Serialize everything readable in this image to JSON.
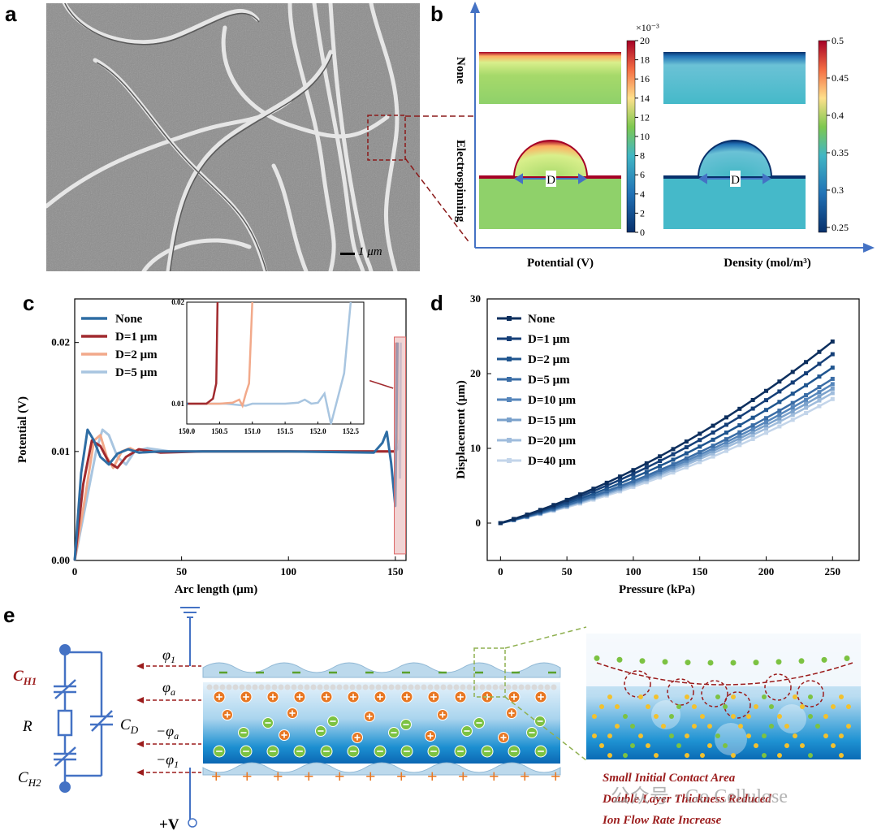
{
  "panels": {
    "a": "a",
    "b": "b",
    "c": "c",
    "d": "d",
    "e": "e"
  },
  "sem": {
    "scale_bar": "1 μm"
  },
  "simulation": {
    "row_labels": [
      "None",
      "Electrospinning"
    ],
    "col_labels": [
      "Potential (V)",
      "Density (mol/m³)"
    ],
    "potential_colorbar": {
      "multiplier": "×10⁻³",
      "ticks": [
        "20",
        "18",
        "16",
        "14",
        "12",
        "10",
        "8",
        "6",
        "4",
        "2",
        "0"
      ]
    },
    "density_colorbar": {
      "ticks": [
        "0.5",
        "0.45",
        "0.4",
        "0.35",
        "0.3",
        "0.25"
      ]
    },
    "dimension_label": "D",
    "colors": {
      "low": "#08306b",
      "mid": "#7ec850",
      "high": "#a50026",
      "arrow": "#4472c4"
    }
  },
  "chart_data": [
    {
      "id": "c",
      "type": "line",
      "xlabel": "Arc length (μm)",
      "ylabel": "Potential (V)",
      "xlim": [
        0,
        155
      ],
      "ylim": [
        0,
        0.024
      ],
      "xticks": [
        "0",
        "50",
        "100",
        "150"
      ],
      "yticks": [
        "0.00",
        "0.01",
        "0.02"
      ],
      "legend_position": "top-left",
      "series": [
        {
          "name": "None",
          "color": "#2e6da4",
          "x": [
            0,
            3,
            6,
            9,
            12,
            16,
            20,
            25,
            30,
            40,
            60,
            100,
            140,
            144,
            146,
            148,
            150,
            151
          ],
          "y": [
            0.0,
            0.008,
            0.012,
            0.011,
            0.0095,
            0.0088,
            0.0098,
            0.0102,
            0.0099,
            0.01,
            0.01,
            0.01,
            0.0099,
            0.0108,
            0.0118,
            0.009,
            0.005,
            0.02
          ]
        },
        {
          "name": "D=1 μm",
          "color": "#a12a2e",
          "x": [
            0,
            4,
            8,
            12,
            16,
            20,
            24,
            30,
            40,
            60,
            100,
            140,
            150,
            150.4,
            150.5
          ],
          "y": [
            0.0,
            0.007,
            0.011,
            0.0105,
            0.009,
            0.0085,
            0.0095,
            0.0102,
            0.0099,
            0.01,
            0.01,
            0.01,
            0.01,
            0.0103,
            0.02
          ]
        },
        {
          "name": "D=2 μm",
          "color": "#f2a98a",
          "x": [
            0,
            5,
            9,
            12,
            15,
            18,
            22,
            26,
            30,
            40,
            60,
            100,
            140,
            150,
            150.8,
            151
          ],
          "y": [
            0.0,
            0.006,
            0.011,
            0.0115,
            0.0095,
            0.0085,
            0.01,
            0.0103,
            0.0099,
            0.01,
            0.01,
            0.01,
            0.01,
            0.01,
            0.011,
            0.02
          ]
        },
        {
          "name": "D=5 μm",
          "color": "#a8c5e0",
          "x": [
            0,
            5,
            10,
            13,
            16,
            20,
            24,
            28,
            34,
            45,
            60,
            100,
            140,
            150,
            151.5,
            152,
            152.2,
            152.5
          ],
          "y": [
            0.0,
            0.005,
            0.01,
            0.012,
            0.0115,
            0.0095,
            0.0088,
            0.01,
            0.0103,
            0.01,
            0.01,
            0.01,
            0.01,
            0.01,
            0.0103,
            0.011,
            0.0076,
            0.02
          ]
        }
      ],
      "inset": {
        "xlim": [
          150.0,
          152.7
        ],
        "ylim": [
          0.008,
          0.02
        ],
        "xticks": [
          "150.0",
          "150.5",
          "151.0",
          "151.5",
          "152.0",
          "152.5"
        ],
        "yticks": [
          "0.01",
          "0.02"
        ],
        "series": [
          {
            "name": "None",
            "color": "#2e6da4",
            "x": [
              150.0,
              150.02
            ],
            "y": [
              0.01,
              0.01
            ]
          },
          {
            "name": "D=1 μm",
            "color": "#a12a2e",
            "x": [
              150.0,
              150.3,
              150.4,
              150.45,
              150.47
            ],
            "y": [
              0.01,
              0.01,
              0.0105,
              0.012,
              0.02
            ]
          },
          {
            "name": "D=2 μm",
            "color": "#f2a98a",
            "x": [
              150.0,
              150.5,
              150.7,
              150.8,
              150.85,
              150.9,
              150.95,
              151.0
            ],
            "y": [
              0.01,
              0.01,
              0.0101,
              0.0104,
              0.0098,
              0.011,
              0.012,
              0.02
            ]
          },
          {
            "name": "D=5 μm",
            "color": "#a8c5e0",
            "x": [
              150.0,
              150.6,
              150.9,
              151.0,
              151.5,
              151.7,
              151.8,
              151.9,
              152.0,
              152.1,
              152.2,
              152.3,
              152.4,
              152.5
            ],
            "y": [
              0.01,
              0.01,
              0.0098,
              0.01,
              0.01,
              0.0101,
              0.0104,
              0.01,
              0.0101,
              0.011,
              0.008,
              0.0105,
              0.013,
              0.02
            ]
          }
        ]
      }
    },
    {
      "id": "d",
      "type": "line",
      "xlabel": "Pressure (kPa)",
      "ylabel": "Displacement (μm)",
      "xlim": [
        -10,
        270
      ],
      "ylim": [
        -5,
        30
      ],
      "xticks": [
        "0",
        "50",
        "100",
        "150",
        "200",
        "250"
      ],
      "yticks": [
        "0",
        "10",
        "20",
        "30"
      ],
      "legend_position": "top-left",
      "x": [
        0,
        10,
        20,
        30,
        40,
        50,
        60,
        70,
        80,
        90,
        100,
        110,
        120,
        130,
        140,
        150,
        160,
        170,
        180,
        190,
        200,
        210,
        220,
        230,
        240,
        250
      ],
      "series": [
        {
          "name": "None",
          "color": "#0d2f5e",
          "end": 24.3
        },
        {
          "name": "D=1 μm",
          "color": "#153f78",
          "end": 22.6
        },
        {
          "name": "D=2 μm",
          "color": "#1f558f",
          "end": 20.8
        },
        {
          "name": "D=5 μm",
          "color": "#3a6da6",
          "end": 19.3
        },
        {
          "name": "D=10 μm",
          "color": "#5686bb",
          "end": 18.6
        },
        {
          "name": "D=15 μm",
          "color": "#7aa1cb",
          "end": 18.0
        },
        {
          "name": "D=20 μm",
          "color": "#9fbcdc",
          "end": 17.4
        },
        {
          "name": "D=40 μm",
          "color": "#c3d5ea",
          "end": 16.6
        }
      ]
    }
  ],
  "circuit": {
    "c_h1": "C",
    "c_h1_sub": "H1",
    "c_h2": "C",
    "c_h2_sub": "H2",
    "r": "R",
    "c_d": "C",
    "c_d_sub": "D",
    "voltage": "+V"
  },
  "potentials": {
    "phi1": "φ",
    "phi1_sub": "1",
    "phia": "φ",
    "phia_sub": "a",
    "neg_phia": "−φ",
    "neg_phia_sub": "a",
    "neg_phi1": "−φ",
    "neg_phi1_sub": "1"
  },
  "annotations": [
    "Small Initial Contact Area",
    "Double Layer Thickness Reduced",
    "Ion Flow Rate Increase"
  ],
  "watermark": "公众号 · Go Cellulose"
}
